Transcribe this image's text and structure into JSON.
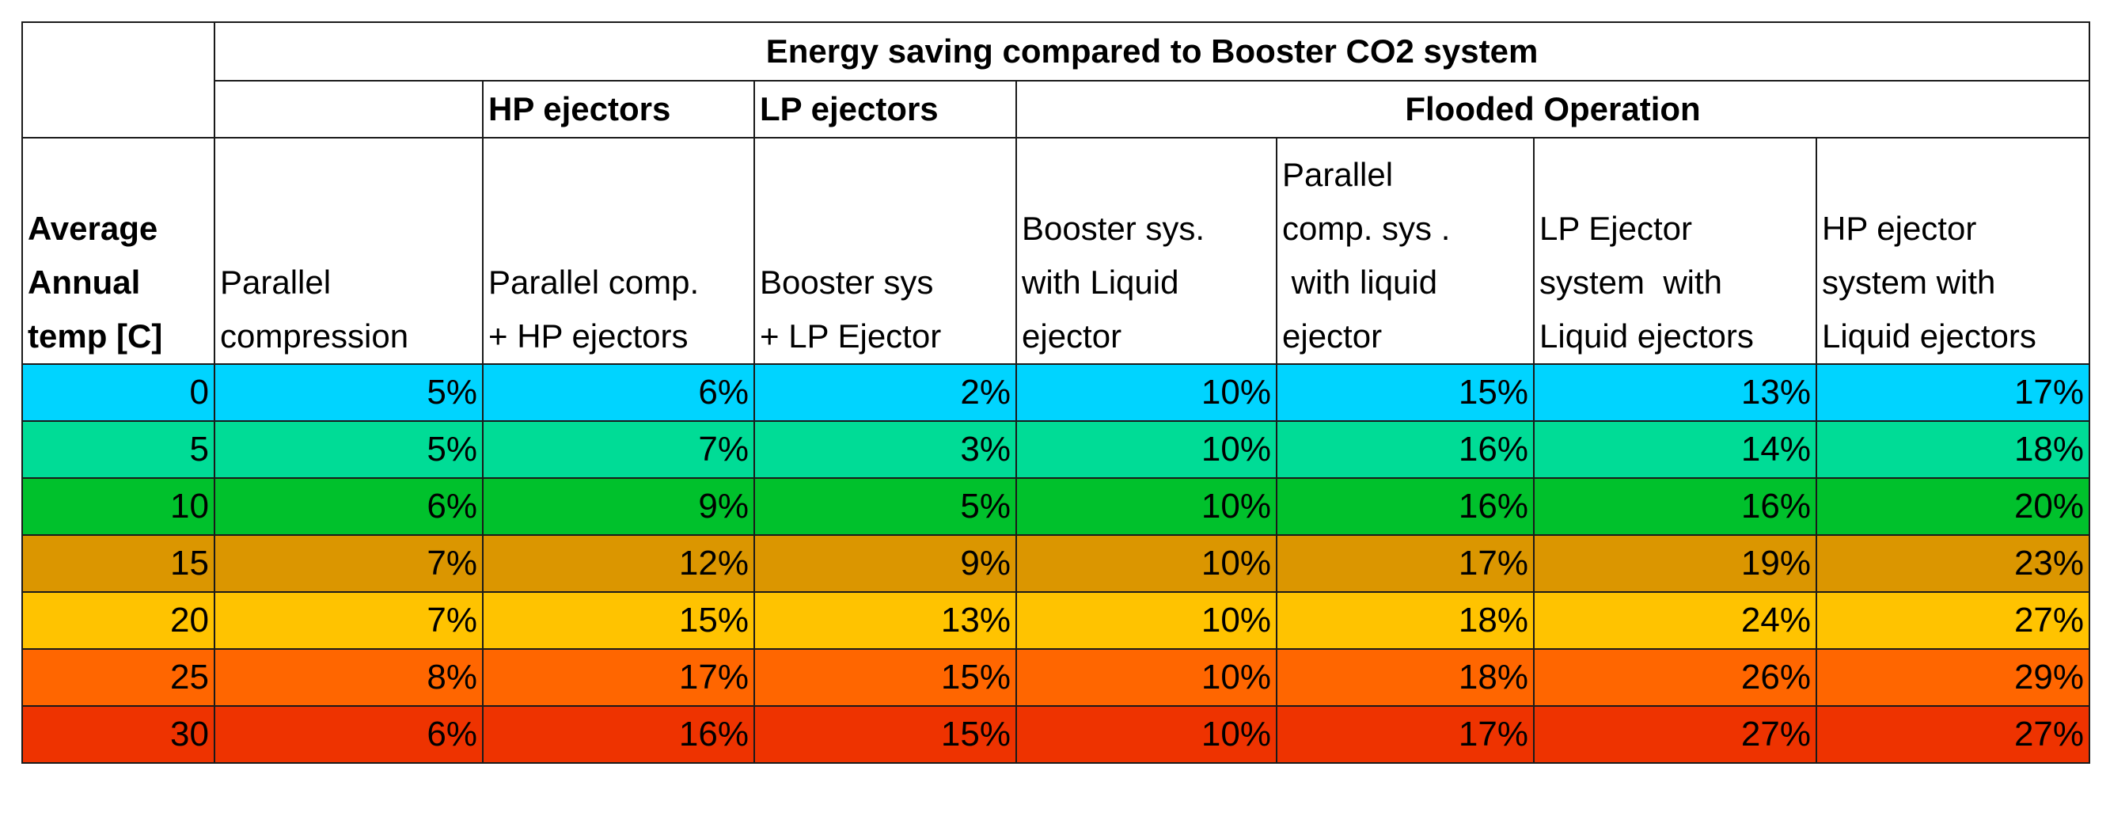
{
  "table": {
    "title": "Energy saving compared to Booster CO2 system",
    "groups": {
      "hp": "HP ejectors",
      "lp": "LP ejectors",
      "flooded": "Flooded Operation"
    },
    "row_header": [
      "Average",
      "Annual",
      "temp [C]"
    ],
    "subheaders": [
      [
        "Parallel",
        "compression"
      ],
      [
        "Parallel comp.",
        "+  HP ejectors"
      ],
      [
        "Booster sys",
        "+  LP Ejector"
      ],
      [
        "Booster sys.",
        "with  Liquid",
        "ejector"
      ],
      [
        "Parallel",
        "comp. sys .",
        " with liquid",
        "ejector"
      ],
      [
        "LP Ejector",
        "system  with",
        "Liquid ejectors"
      ],
      [
        "HP ejector",
        "system with",
        "Liquid ejectors"
      ]
    ],
    "rows": [
      {
        "temp": "0",
        "values": [
          "5%",
          "6%",
          "2%",
          "10%",
          "15%",
          "13%",
          "17%"
        ]
      },
      {
        "temp": "5",
        "values": [
          "5%",
          "7%",
          "3%",
          "10%",
          "16%",
          "14%",
          "18%"
        ]
      },
      {
        "temp": "10",
        "values": [
          "6%",
          "9%",
          "5%",
          "10%",
          "16%",
          "16%",
          "20%"
        ]
      },
      {
        "temp": "15",
        "values": [
          "7%",
          "12%",
          "9%",
          "10%",
          "17%",
          "19%",
          "23%"
        ]
      },
      {
        "temp": "20",
        "values": [
          "7%",
          "15%",
          "13%",
          "10%",
          "18%",
          "24%",
          "27%"
        ]
      },
      {
        "temp": "25",
        "values": [
          "8%",
          "17%",
          "15%",
          "10%",
          "18%",
          "26%",
          "29%"
        ]
      },
      {
        "temp": "30",
        "values": [
          "6%",
          "16%",
          "15%",
          "10%",
          "17%",
          "27%",
          "27%"
        ]
      }
    ],
    "row_colors": [
      "#00d4ff",
      "#00dc96",
      "#00c12c",
      "#db9600",
      "#ffc300",
      "#ff6600",
      "#ee3300"
    ]
  }
}
